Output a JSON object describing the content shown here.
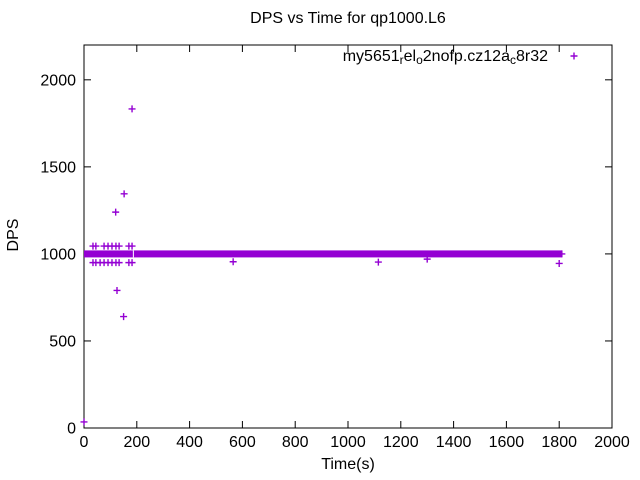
{
  "chart_data": {
    "type": "scatter",
    "title": "DPS vs Time for qp1000.L6",
    "xlabel": "Time(s)",
    "ylabel": "DPS",
    "xlim": [
      0,
      2000
    ],
    "ylim": [
      0,
      2200
    ],
    "x_ticks": [
      0,
      200,
      400,
      600,
      800,
      1000,
      1200,
      1400,
      1600,
      1800,
      2000
    ],
    "y_ticks": [
      0,
      500,
      1000,
      1500,
      2000
    ],
    "grid": false,
    "legend_position": "top-right-inside",
    "marker": "plus",
    "colors": {
      "series": "#9400D3",
      "frame": "#000000",
      "background": "#ffffff"
    },
    "series": [
      {
        "name": "my5651_rel_o2nofp.cz12a_c8r32",
        "label_parts": [
          {
            "text": "my5651"
          },
          {
            "sub": "r"
          },
          {
            "text": "el"
          },
          {
            "sub": "o"
          },
          {
            "text": "2nofp.cz12a"
          },
          {
            "sub": "c"
          },
          {
            "text": "8r32"
          }
        ],
        "color": "#9400D3",
        "band": {
          "x_start": 0,
          "x_end": 1810,
          "y": 1000,
          "y_spread": 20,
          "gap_x": 187,
          "description": "dense overlapping samples at ~1000 DPS from t=0 to t=1810"
        },
        "points": [
          [
            182,
            1833
          ],
          [
            152,
            1345
          ],
          [
            120,
            1240
          ],
          [
            34,
            1045
          ],
          [
            45,
            1045
          ],
          [
            76,
            1045
          ],
          [
            91,
            1045
          ],
          [
            106,
            1045
          ],
          [
            121,
            1045
          ],
          [
            133,
            1045
          ],
          [
            170,
            1045
          ],
          [
            182,
            1045
          ],
          [
            34,
            950
          ],
          [
            45,
            950
          ],
          [
            61,
            950
          ],
          [
            76,
            950
          ],
          [
            91,
            950
          ],
          [
            106,
            950
          ],
          [
            121,
            950
          ],
          [
            133,
            950
          ],
          [
            170,
            950
          ],
          [
            182,
            950
          ],
          [
            565,
            955
          ],
          [
            1115,
            953
          ],
          [
            1300,
            970
          ],
          [
            1800,
            945
          ],
          [
            125,
            790
          ],
          [
            150,
            640
          ],
          [
            0,
            35
          ]
        ]
      }
    ]
  }
}
